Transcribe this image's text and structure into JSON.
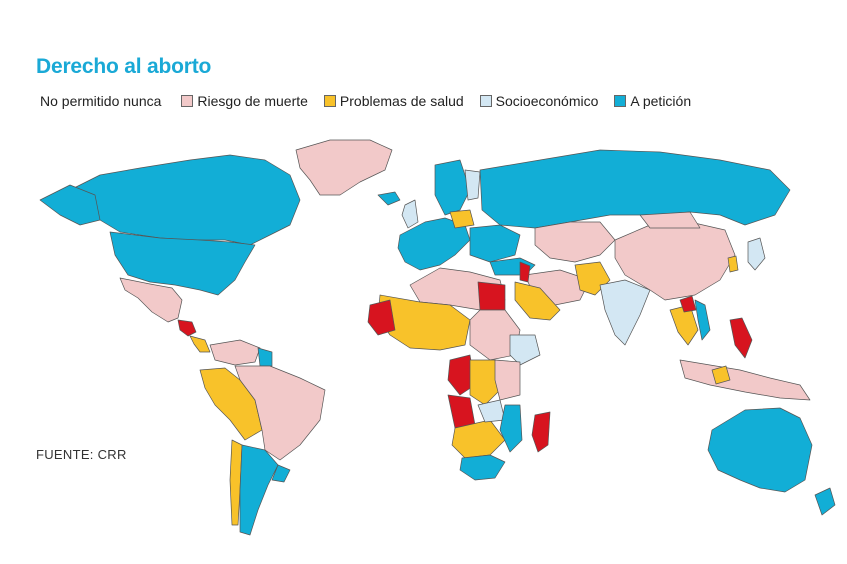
{
  "title": "Derecho al aborto",
  "source": "FUENTE: CRR",
  "legend": [
    {
      "label": "No permitido nunca",
      "color": "#d7141f",
      "key": "never"
    },
    {
      "label": "Riesgo de muerte",
      "color": "#f2c9c9",
      "key": "life"
    },
    {
      "label": "Problemas de salud",
      "color": "#f8c22a",
      "key": "health"
    },
    {
      "label": "Socioeconómico",
      "color": "#d3e7f3",
      "key": "socio"
    },
    {
      "label": "A petición",
      "color": "#12aed6",
      "key": "request"
    }
  ],
  "colors": {
    "never": "#d7141f",
    "life": "#f2c9c9",
    "health": "#f8c22a",
    "socio": "#d3e7f3",
    "request": "#12aed6"
  }
}
